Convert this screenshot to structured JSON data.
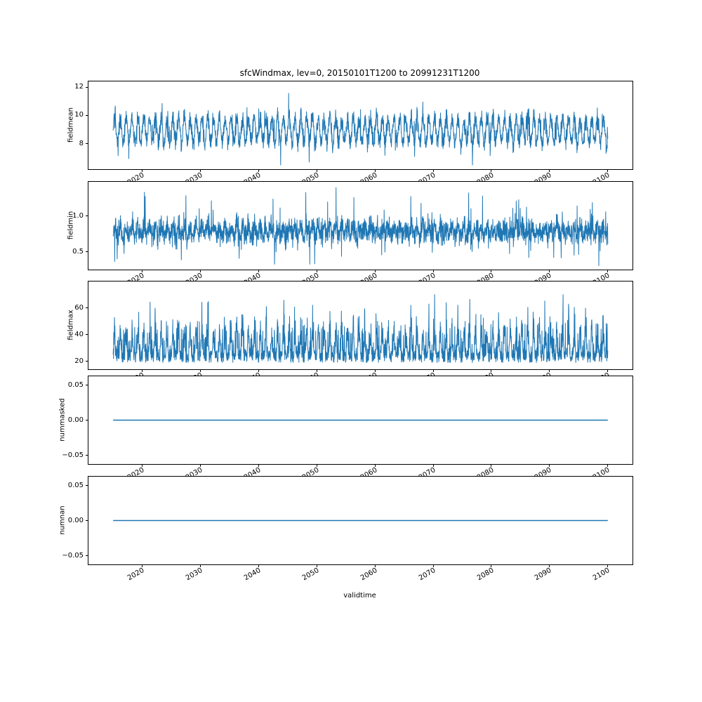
{
  "figure": {
    "title": "sfcWindmax, lev=0, 20150101T1200 to 20991231T1200",
    "xlabel": "validtime",
    "background": "#ffffff",
    "line_color": "#1f77b4",
    "axes_edge_color": "#000000"
  },
  "xticks": {
    "values": [
      2020,
      2030,
      2040,
      2050,
      2060,
      2070,
      2080,
      2090,
      2100
    ],
    "labels": [
      "2020",
      "2030",
      "2040",
      "2050",
      "2060",
      "2070",
      "2080",
      "2090",
      "2100"
    ],
    "xlim": [
      2010.75,
      2104.25
    ],
    "rotation_deg": 30
  },
  "chart_data": [
    {
      "type": "line",
      "ylabel": "fieldmean",
      "x_range": [
        2015.0,
        2100.0
      ],
      "ylim": [
        6.2,
        12.4
      ],
      "yticks": [
        8,
        10,
        12
      ],
      "ytick_labels": [
        "8",
        "10",
        "12"
      ],
      "series": {
        "kind": "noisy",
        "points": 2600,
        "center": 8.95,
        "spread": 0.55,
        "seasonal_amp": 0.85,
        "spike_prob": 0.012,
        "spike_up": 1.5,
        "spike_down": 1.2,
        "min": 6.5,
        "max": 12.15
      }
    },
    {
      "type": "line",
      "ylabel": "fieldmin",
      "x_range": [
        2015.0,
        2100.0
      ],
      "ylim": [
        0.25,
        1.48
      ],
      "yticks": [
        0.5,
        1.0
      ],
      "ytick_labels": [
        "0.5",
        "1.0"
      ],
      "series": {
        "kind": "noisy",
        "points": 2600,
        "center": 0.79,
        "spread": 0.14,
        "seasonal_amp": 0.06,
        "spike_prob": 0.015,
        "spike_up": 0.5,
        "spike_down": 0.35,
        "min": 0.3,
        "max": 1.42
      }
    },
    {
      "type": "line",
      "ylabel": "fieldmax",
      "x_range": [
        2015.0,
        2100.0
      ],
      "ylim": [
        14,
        80
      ],
      "yticks": [
        20,
        40,
        60
      ],
      "ytick_labels": [
        "20",
        "40",
        "60"
      ],
      "series": {
        "kind": "skewed",
        "points": 2600,
        "base": 19,
        "band": 9,
        "seas": 27,
        "spike": 25,
        "pow": 8,
        "min": 17,
        "max": 77
      }
    },
    {
      "type": "line",
      "ylabel": "nummasked",
      "x_range": [
        2015.0,
        2100.0
      ],
      "ylim": [
        -0.0625,
        0.0625
      ],
      "yticks": [
        -0.05,
        0.0,
        0.05
      ],
      "ytick_labels": [
        "−0.05",
        "0.00",
        "0.05"
      ],
      "series": {
        "kind": "constant",
        "value": 0.0
      }
    },
    {
      "type": "line",
      "ylabel": "numnan",
      "x_range": [
        2015.0,
        2100.0
      ],
      "ylim": [
        -0.0625,
        0.0625
      ],
      "yticks": [
        -0.05,
        0.0,
        0.05
      ],
      "ytick_labels": [
        "−0.05",
        "0.00",
        "0.05"
      ],
      "series": {
        "kind": "constant",
        "value": 0.0
      }
    }
  ]
}
